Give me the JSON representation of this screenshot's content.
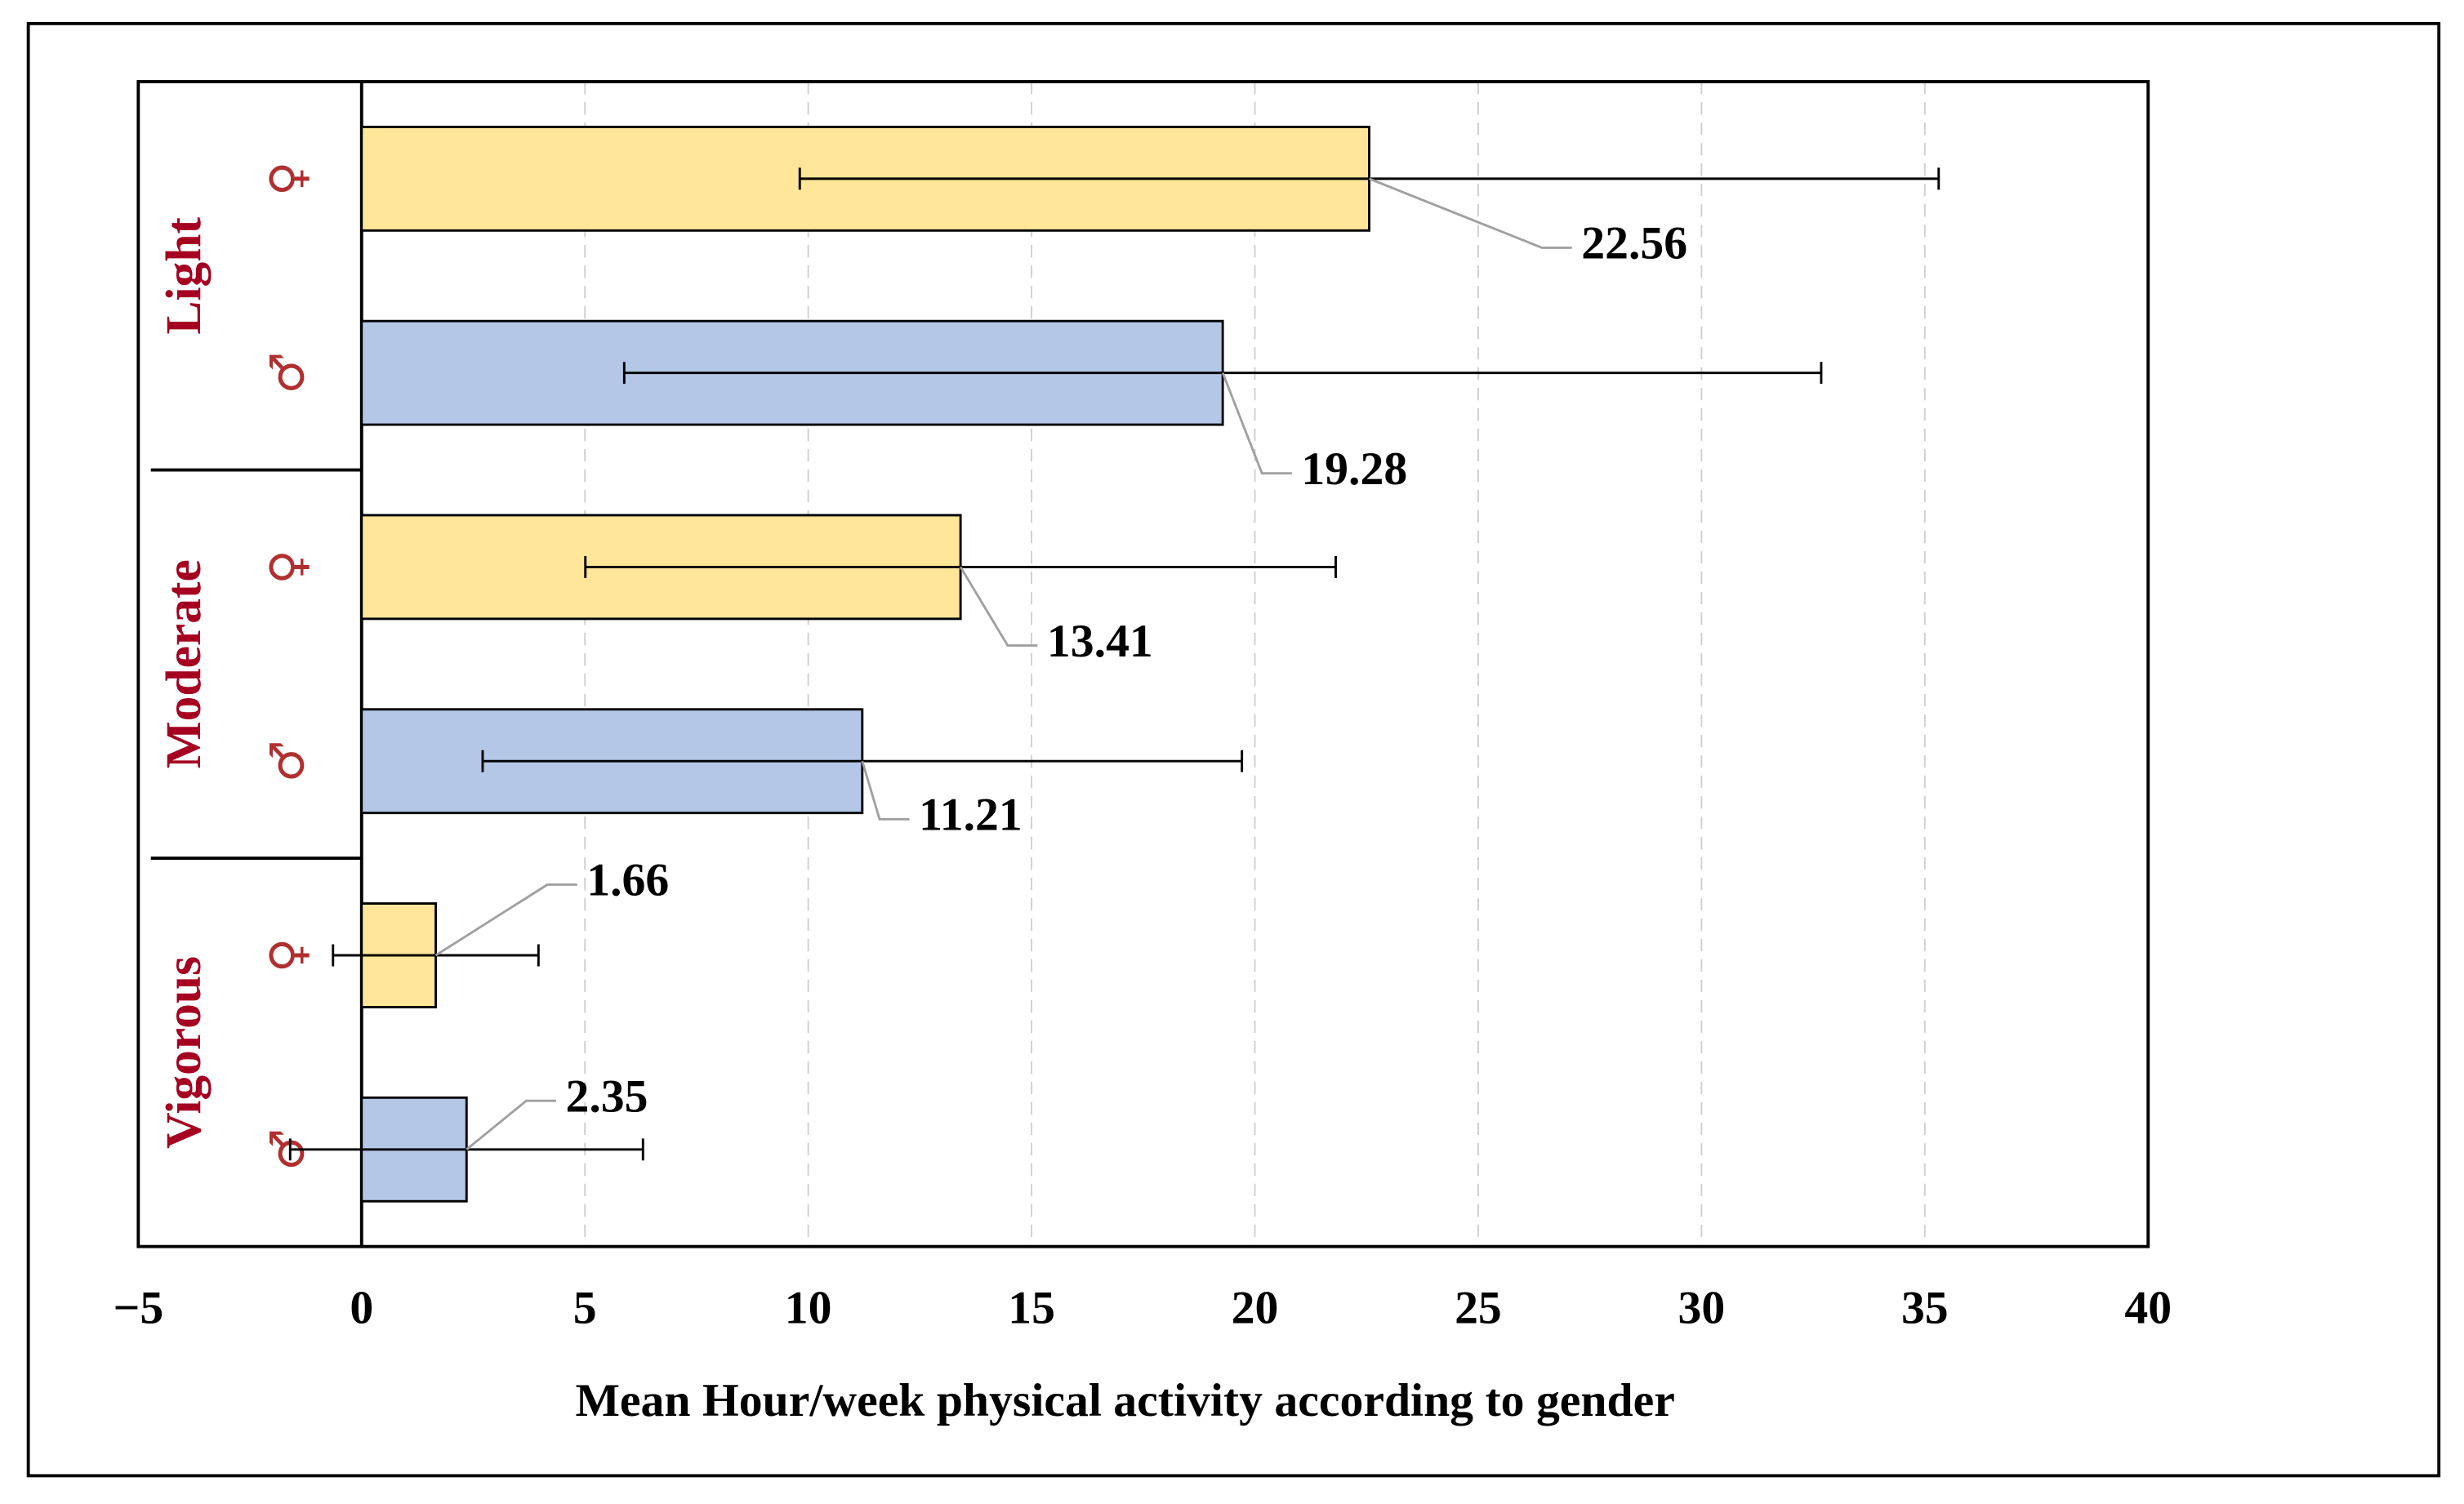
{
  "chart_data": {
    "type": "hbar-error",
    "x_label": "Mean Hour/week physical activity according to gender",
    "groups": [
      "Light",
      "Moderate",
      "Vigorous"
    ],
    "categories": [
      "♀",
      "♂",
      "♀",
      "♂",
      "♀",
      "♂"
    ],
    "values": [
      22.56,
      19.28,
      13.41,
      11.21,
      1.66,
      2.35
    ],
    "errors": [
      12.75,
      13.4,
      8.4,
      8.5,
      2.3,
      3.95
    ],
    "colors": [
      "#ffe699",
      "#b4c7e7",
      "#ffe699",
      "#b4c7e7",
      "#ffe699",
      "#b4c7e7"
    ],
    "xlim": [
      -5,
      40
    ],
    "xticks": [
      {
        "value": -5,
        "label": "−5"
      },
      0,
      5,
      10,
      15,
      20,
      25,
      30,
      35,
      40
    ],
    "grid": true
  }
}
